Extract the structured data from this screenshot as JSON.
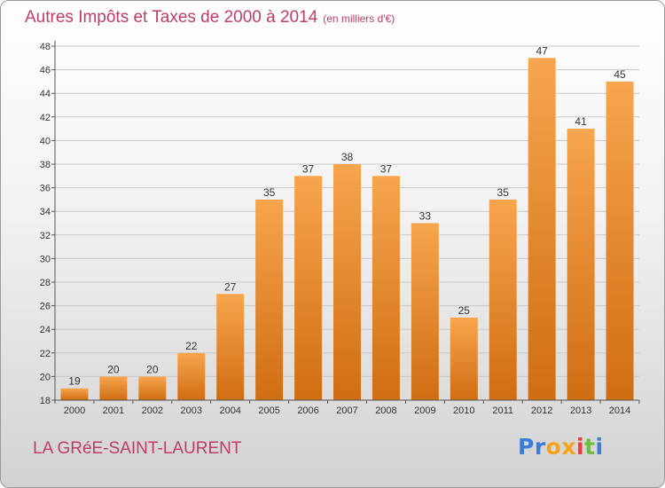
{
  "title": "Autres Impôts et Taxes de 2000 à 2014",
  "unit_note": "(en milliers d'€)",
  "commune": "LA GRéE-SAINT-LAURENT",
  "logo": {
    "letters": [
      "P",
      "r",
      "o",
      "x",
      "i",
      "t",
      "i"
    ],
    "colors": [
      "#3d7bd6",
      "#3d7bd6",
      "#f4a21b",
      "#f4a21b",
      "#e04040",
      "#6bbf3a",
      "#3d7bd6"
    ]
  },
  "colors": {
    "bar_light": "#f7a54e",
    "bar_dark": "#d06d12",
    "grid": "#c9c9c9",
    "axis": "#555555"
  },
  "chart_data": {
    "type": "bar",
    "title": "Autres Impôts et Taxes de 2000 à 2014",
    "subtitle": "(en milliers d'€)",
    "xlabel": "",
    "ylabel": "",
    "categories": [
      "2000",
      "2001",
      "2002",
      "2003",
      "2004",
      "2005",
      "2006",
      "2007",
      "2008",
      "2009",
      "2010",
      "2011",
      "2012",
      "2013",
      "2014"
    ],
    "values": [
      19,
      20,
      20,
      22,
      27,
      35,
      37,
      38,
      37,
      33,
      25,
      35,
      47,
      41,
      45
    ],
    "ylim": [
      18,
      48
    ],
    "yticks": [
      18,
      20,
      22,
      24,
      26,
      28,
      30,
      32,
      34,
      36,
      38,
      40,
      42,
      44,
      46,
      48
    ],
    "grid": true,
    "legend": "none"
  }
}
